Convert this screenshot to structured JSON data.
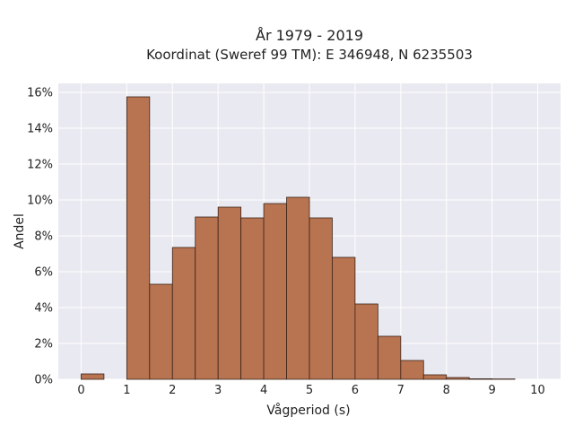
{
  "chart_data": {
    "type": "bar",
    "title_line1": "År 1979 - 2019",
    "title_line2": "Koordinat (Sweref 99 TM): E 346948, N 6235503",
    "xlabel": "Vågperiod (s)",
    "ylabel": "Andel",
    "xlim": [
      -0.5,
      10.5
    ],
    "ylim": [
      0,
      16.5
    ],
    "x_ticks": [
      0,
      1,
      2,
      3,
      4,
      5,
      6,
      7,
      8,
      9,
      10
    ],
    "y_ticks": [
      0,
      2,
      4,
      6,
      8,
      10,
      12,
      14,
      16
    ],
    "y_tick_labels": [
      "0%",
      "2%",
      "4%",
      "6%",
      "8%",
      "10%",
      "12%",
      "14%",
      "16%"
    ],
    "bin_width": 0.5,
    "bins": [
      {
        "start": 0.0,
        "value": 0.3
      },
      {
        "start": 1.0,
        "value": 15.75
      },
      {
        "start": 1.5,
        "value": 5.3
      },
      {
        "start": 2.0,
        "value": 7.35
      },
      {
        "start": 2.5,
        "value": 9.05
      },
      {
        "start": 3.0,
        "value": 9.6
      },
      {
        "start": 3.5,
        "value": 9.0
      },
      {
        "start": 4.0,
        "value": 9.8
      },
      {
        "start": 4.5,
        "value": 10.15
      },
      {
        "start": 5.0,
        "value": 9.0
      },
      {
        "start": 5.5,
        "value": 6.8
      },
      {
        "start": 6.0,
        "value": 4.2
      },
      {
        "start": 6.5,
        "value": 2.4
      },
      {
        "start": 7.0,
        "value": 1.05
      },
      {
        "start": 7.5,
        "value": 0.25
      },
      {
        "start": 8.0,
        "value": 0.1
      },
      {
        "start": 8.5,
        "value": 0.03
      },
      {
        "start": 9.0,
        "value": 0.02
      }
    ],
    "grid": true,
    "colors": {
      "bar_fill": "#b87350",
      "bar_edge": "#3b2418",
      "plot_bg": "#e9e9f1",
      "grid": "#ffffff"
    }
  }
}
